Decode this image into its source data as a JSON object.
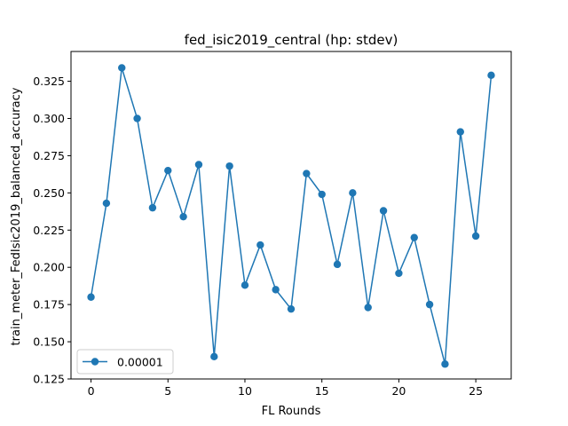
{
  "chart_data": {
    "type": "line",
    "title": "fed_isic2019_central (hp: stdev)",
    "xlabel": "FL Rounds",
    "ylabel": "train_meter_FedIsic2019_balanced_accuracy",
    "xlim": [
      -1.3,
      27.3
    ],
    "ylim": [
      0.125,
      0.345
    ],
    "xticks": [
      0,
      5,
      10,
      15,
      20,
      25
    ],
    "xtick_labels": [
      "0",
      "5",
      "10",
      "15",
      "20",
      "25"
    ],
    "yticks": [
      0.125,
      0.15,
      0.175,
      0.2,
      0.225,
      0.25,
      0.275,
      0.3,
      0.325
    ],
    "ytick_labels": [
      "0.125",
      "0.150",
      "0.175",
      "0.200",
      "0.225",
      "0.250",
      "0.275",
      "0.300",
      "0.325"
    ],
    "grid": false,
    "legend_position": "lower-left",
    "series": [
      {
        "name": "0.00001",
        "color": "#1f77b4",
        "marker": "circle",
        "x": [
          0,
          1,
          2,
          3,
          4,
          5,
          6,
          7,
          8,
          9,
          10,
          11,
          12,
          13,
          14,
          15,
          16,
          17,
          18,
          19,
          20,
          21,
          22,
          23,
          24,
          25,
          26
        ],
        "values": [
          0.18,
          0.243,
          0.334,
          0.3,
          0.24,
          0.265,
          0.234,
          0.269,
          0.14,
          0.268,
          0.188,
          0.215,
          0.185,
          0.172,
          0.263,
          0.249,
          0.202,
          0.25,
          0.173,
          0.238,
          0.196,
          0.22,
          0.175,
          0.135,
          0.291,
          0.221,
          0.329
        ]
      }
    ]
  }
}
